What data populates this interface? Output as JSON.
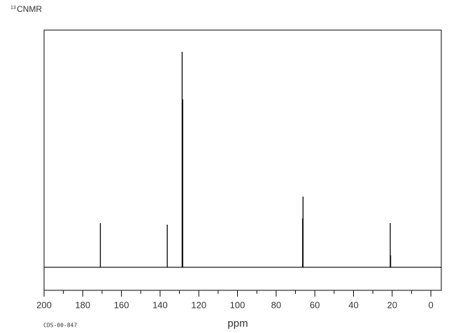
{
  "chart_data": {
    "type": "spectrum",
    "title_sup": "13",
    "title": "CNMR",
    "footer": "CDS-00-847",
    "x_label": "ppm",
    "x": [
      170.9,
      136.3,
      128.6,
      128.3,
      66.3,
      66.1,
      21.0,
      20.8
    ],
    "values": [
      205,
      198,
      1000,
      779,
      227,
      328,
      205,
      55
    ],
    "color": "#000000",
    "xlim": [
      200,
      -5.4
    ],
    "ylim": [
      -107,
      1101
    ],
    "xticks": [
      200,
      180,
      160,
      140,
      120,
      100,
      80,
      60,
      40,
      20,
      0
    ],
    "xminorticks": [
      190,
      170,
      150,
      130,
      110,
      90,
      70,
      50,
      30,
      10
    ]
  }
}
